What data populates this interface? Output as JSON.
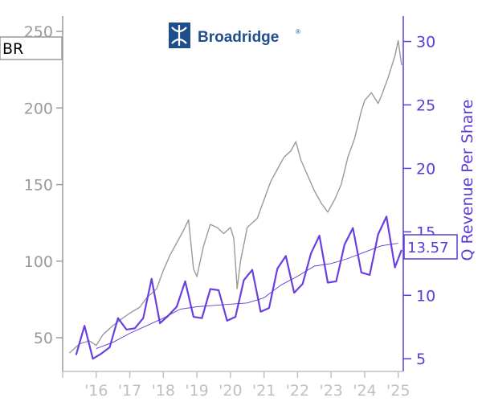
{
  "ticker": "BR",
  "logo": {
    "name": "Broadridge",
    "mark": "®",
    "color": "#1e4f8c"
  },
  "last_value_label": "13.57",
  "chart_data": {
    "type": "line",
    "x_tick_labels": [
      "'16",
      "'17",
      "'18",
      "'19",
      "'20",
      "'21",
      "'22",
      "'23",
      "'24",
      "'25"
    ],
    "left_axis": {
      "ticks": [
        50,
        100,
        150,
        200,
        250
      ],
      "range": [
        28,
        260
      ],
      "color": "#9a9a9a"
    },
    "right_axis": {
      "label": "Q Revenue Per Share",
      "ticks": [
        5,
        10,
        15,
        20,
        25,
        30
      ],
      "range": [
        4,
        32
      ],
      "color": "#5b3ad6"
    },
    "series": [
      {
        "axis": "left",
        "color": "#9a9a9a",
        "x": [
          2015.2,
          2015.5,
          2015.8,
          2016.0,
          2016.2,
          2016.5,
          2016.8,
          2017.0,
          2017.3,
          2017.5,
          2017.8,
          2018.0,
          2018.2,
          2018.4,
          2018.6,
          2018.75,
          2018.9,
          2019.0,
          2019.2,
          2019.4,
          2019.6,
          2019.8,
          2020.0,
          2020.1,
          2020.2,
          2020.3,
          2020.5,
          2020.8,
          2021.0,
          2021.2,
          2021.4,
          2021.6,
          2021.8,
          2021.95,
          2022.1,
          2022.3,
          2022.5,
          2022.7,
          2022.9,
          2023.1,
          2023.3,
          2023.5,
          2023.7,
          2023.9,
          2024.0,
          2024.2,
          2024.4,
          2024.5,
          2024.7,
          2024.9,
          2025.0,
          2025.1
        ],
        "y": [
          40,
          46,
          48,
          45,
          52,
          58,
          63,
          66,
          70,
          76,
          82,
          94,
          104,
          112,
          120,
          127,
          95,
          90,
          110,
          124,
          122,
          118,
          122,
          115,
          82,
          100,
          122,
          128,
          140,
          152,
          160,
          168,
          172,
          178,
          166,
          156,
          146,
          138,
          132,
          140,
          150,
          168,
          180,
          198,
          205,
          210,
          203,
          208,
          220,
          234,
          244,
          228
        ]
      },
      {
        "axis": "right",
        "color": "#6a3fe0",
        "x": [
          2015.4,
          2015.65,
          2015.9,
          2016.15,
          2016.4,
          2016.65,
          2016.9,
          2017.15,
          2017.4,
          2017.65,
          2017.9,
          2018.15,
          2018.4,
          2018.65,
          2018.9,
          2019.15,
          2019.4,
          2019.65,
          2019.9,
          2020.15,
          2020.4,
          2020.65,
          2020.9,
          2021.15,
          2021.4,
          2021.65,
          2021.9,
          2022.15,
          2022.4,
          2022.65,
          2022.9,
          2023.15,
          2023.4,
          2023.65,
          2023.9,
          2024.15,
          2024.4,
          2024.65,
          2024.9,
          2025.1
        ],
        "y": [
          5.3,
          7.6,
          5.0,
          5.4,
          5.9,
          8.2,
          7.3,
          7.4,
          8.2,
          11.3,
          7.8,
          8.4,
          9.1,
          11.1,
          8.3,
          8.2,
          10.5,
          10.4,
          8.0,
          8.3,
          11.2,
          12.0,
          8.7,
          9.0,
          12.1,
          13.1,
          10.2,
          10.9,
          13.3,
          14.7,
          11.0,
          11.1,
          14.0,
          15.3,
          11.8,
          11.6,
          14.8,
          16.2,
          12.2,
          13.57
        ]
      },
      {
        "axis": "right",
        "color": "#5b3ad6",
        "x": [
          2016.0,
          2016.5,
          2017.0,
          2017.5,
          2018.0,
          2018.5,
          2019.0,
          2019.5,
          2020.0,
          2020.5,
          2021.0,
          2021.5,
          2022.0,
          2022.5,
          2023.0,
          2023.5,
          2024.0,
          2024.5,
          2025.0
        ],
        "y": [
          5.8,
          6.3,
          7.0,
          7.6,
          8.2,
          8.9,
          9.1,
          9.2,
          9.3,
          9.4,
          9.8,
          10.8,
          11.5,
          12.3,
          12.5,
          12.9,
          13.4,
          13.9,
          14.1
        ]
      }
    ]
  }
}
